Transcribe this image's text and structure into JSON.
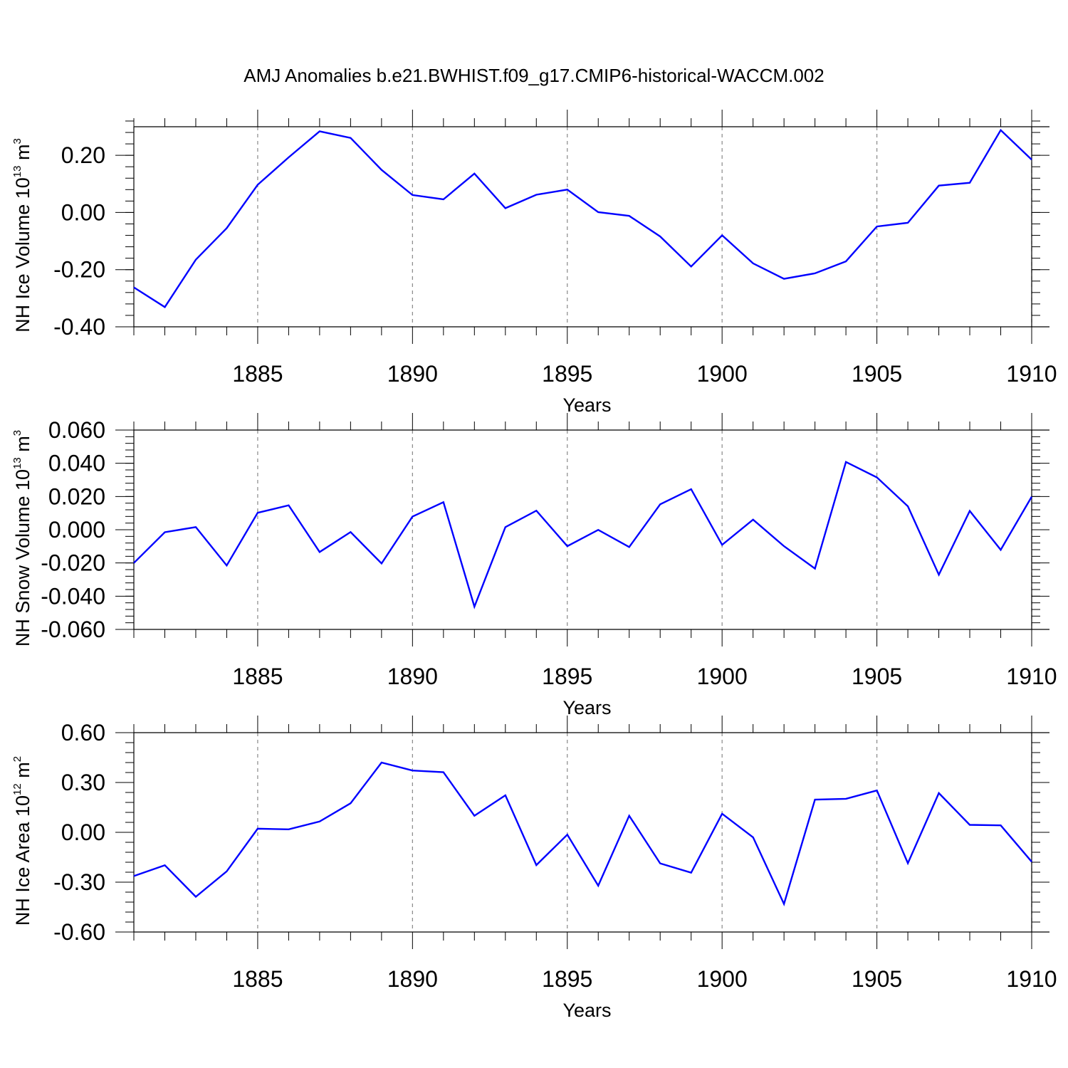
{
  "chart_data": [
    {
      "type": "line",
      "panel": "top",
      "title": "AMJ Anomalies b.e21.BWHIST.f09_g17.CMIP6-historical-WACCM.002",
      "ylabel": {
        "text": "NH Ice Volume 10",
        "exp": "13",
        "unit": " m",
        "unit_exp": "3"
      },
      "xlabel": "Years",
      "xlim": [
        1881,
        1910
      ],
      "ylim": [
        -0.4,
        0.3
      ],
      "yticks": [
        -0.4,
        -0.2,
        0.0,
        0.2
      ],
      "ytick_labels": [
        "-0.40",
        "-0.20",
        "0.00",
        "0.20"
      ],
      "yminor_step": 0.04,
      "xticks": [
        1885,
        1890,
        1895,
        1900,
        1905,
        1910
      ],
      "xtick_labels": [
        "1885",
        "1890",
        "1895",
        "1900",
        "1905",
        "1910"
      ],
      "grid": "vertical dashed at major x ticks",
      "series": [
        {
          "name": "NH Ice Volume",
          "color": "#0000ff",
          "x": [
            1881,
            1882,
            1883,
            1884,
            1885,
            1886,
            1887,
            1888,
            1889,
            1890,
            1891,
            1892,
            1893,
            1894,
            1895,
            1896,
            1897,
            1898,
            1899,
            1900,
            1901,
            1902,
            1903,
            1904,
            1905,
            1906,
            1907,
            1908,
            1909,
            1910
          ],
          "values": [
            -0.262,
            -0.331,
            -0.165,
            -0.055,
            0.097,
            0.193,
            0.284,
            0.261,
            0.149,
            0.061,
            0.046,
            0.136,
            0.015,
            0.062,
            0.08,
            0.001,
            -0.012,
            -0.084,
            -0.189,
            -0.08,
            -0.178,
            -0.232,
            -0.213,
            -0.171,
            -0.049,
            -0.036,
            0.094,
            0.104,
            0.288,
            0.185
          ]
        }
      ]
    },
    {
      "type": "line",
      "panel": "middle",
      "ylabel": {
        "text": "NH Snow Volume 10",
        "exp": "13",
        "unit": " m",
        "unit_exp": "3"
      },
      "xlabel": "Years",
      "xlim": [
        1881,
        1910
      ],
      "ylim": [
        -0.06,
        0.06
      ],
      "yticks": [
        -0.06,
        -0.04,
        -0.02,
        0.0,
        0.02,
        0.04,
        0.06
      ],
      "ytick_labels": [
        "-0.060",
        "-0.040",
        "-0.020",
        "0.000",
        "0.020",
        "0.040",
        "0.060"
      ],
      "yminor_step": 0.004,
      "xticks": [
        1885,
        1890,
        1895,
        1900,
        1905,
        1910
      ],
      "xtick_labels": [
        "1885",
        "1890",
        "1895",
        "1900",
        "1905",
        "1910"
      ],
      "grid": "vertical dashed at major x ticks",
      "series": [
        {
          "name": "NH Snow Volume",
          "color": "#0000ff",
          "x": [
            1881,
            1882,
            1883,
            1884,
            1885,
            1886,
            1887,
            1888,
            1889,
            1890,
            1891,
            1892,
            1893,
            1894,
            1895,
            1896,
            1897,
            1898,
            1899,
            1900,
            1901,
            1902,
            1903,
            1904,
            1905,
            1906,
            1907,
            1908,
            1909,
            1910
          ],
          "values": [
            -0.02,
            -0.0015,
            0.0016,
            -0.0215,
            0.0102,
            0.0147,
            -0.0134,
            -0.0014,
            -0.0203,
            0.0079,
            0.0166,
            -0.0463,
            0.0016,
            0.0115,
            -0.0099,
            -0.0001,
            -0.0104,
            0.0153,
            0.0244,
            -0.0091,
            0.0061,
            -0.0099,
            -0.0234,
            0.0408,
            0.0315,
            0.0141,
            -0.0271,
            0.0113,
            -0.0121,
            0.0199
          ]
        }
      ]
    },
    {
      "type": "line",
      "panel": "bottom",
      "ylabel": {
        "text": "NH Ice Area 10",
        "exp": "12",
        "unit": " m",
        "unit_exp": "2"
      },
      "xlabel": "Years",
      "xlim": [
        1881,
        1910
      ],
      "ylim": [
        -0.6,
        0.6
      ],
      "yticks": [
        -0.6,
        -0.3,
        0.0,
        0.3,
        0.6
      ],
      "ytick_labels": [
        "-0.60",
        "-0.30",
        "0.00",
        "0.30",
        "0.60"
      ],
      "yminor_step": 0.06,
      "xticks": [
        1885,
        1890,
        1895,
        1900,
        1905,
        1910
      ],
      "xtick_labels": [
        "1885",
        "1890",
        "1895",
        "1900",
        "1905",
        "1910"
      ],
      "grid": "vertical dashed at major x ticks",
      "series": [
        {
          "name": "NH Ice Area",
          "color": "#0000ff",
          "x": [
            1881,
            1882,
            1883,
            1884,
            1885,
            1886,
            1887,
            1888,
            1889,
            1890,
            1891,
            1892,
            1893,
            1894,
            1895,
            1896,
            1897,
            1898,
            1899,
            1900,
            1901,
            1902,
            1903,
            1904,
            1905,
            1906,
            1907,
            1908,
            1909,
            1910
          ],
          "values": [
            -0.263,
            -0.198,
            -0.388,
            -0.235,
            0.022,
            0.018,
            0.065,
            0.175,
            0.42,
            0.372,
            0.362,
            0.1,
            0.223,
            -0.197,
            -0.014,
            -0.321,
            0.1,
            -0.187,
            -0.243,
            0.112,
            -0.03,
            -0.431,
            0.197,
            0.202,
            0.252,
            -0.186,
            0.236,
            0.045,
            0.042,
            -0.177
          ]
        }
      ]
    }
  ]
}
